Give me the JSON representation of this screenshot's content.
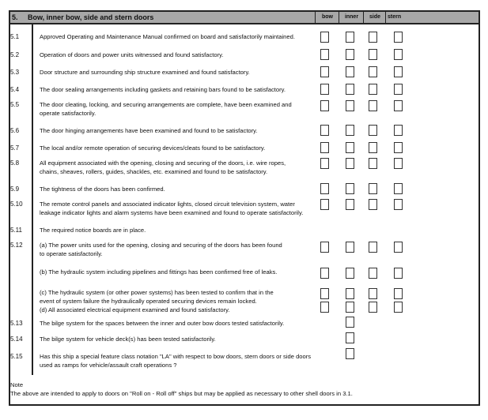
{
  "section": {
    "number": "5.",
    "title": "Bow, inner bow, side and stern doors"
  },
  "columns": [
    "bow",
    "inner",
    "side",
    "stern"
  ],
  "items": [
    {
      "num": "5.1",
      "text": "Approved Operating and Maintenance Manual confirmed on board and satisfactorily maintained.",
      "boxes": [
        true,
        true,
        true,
        true
      ]
    },
    {
      "num": "5.2",
      "text": "Operation of doors and power units witnessed and found satisfactory.",
      "boxes": [
        true,
        true,
        true,
        true
      ]
    },
    {
      "num": "5.3",
      "text": "Door structure and surrounding ship structure examined and found satisfactory.",
      "boxes": [
        true,
        true,
        true,
        true
      ]
    },
    {
      "num": "5.4",
      "text": "The door sealing arrangements including gaskets and retaining bars found to be satisfactory.",
      "boxes": [
        true,
        true,
        true,
        true
      ]
    },
    {
      "num": "5.5",
      "text": "The door cleating, locking, and securing arrangements are complete, have been examined and\noperate satisfactorily.",
      "boxes": [
        true,
        true,
        true,
        true
      ]
    },
    {
      "num": "5.6",
      "text": "The door hinging arrangements have been examined and found to be satisfactory.",
      "boxes": [
        true,
        true,
        true,
        true
      ]
    },
    {
      "num": "5.7",
      "text": "The local and/or remote operation of securing devices/cleats found to be satisfactory.",
      "boxes": [
        true,
        true,
        true,
        true
      ]
    },
    {
      "num": "5.8",
      "text": "All equipment associated with the opening, closing and securing of the doors, i.e. wire ropes,\nchains, sheaves, rollers, guides, shackles, etc. examined and found to be satisfactory.",
      "boxes": [
        true,
        true,
        true,
        true
      ]
    },
    {
      "num": "5.9",
      "text": "The tightness of the doors has been confirmed.",
      "boxes": [
        true,
        true,
        true,
        true
      ]
    },
    {
      "num": "5.10",
      "text": "The remote control panels and associated indicator lights, closed circuit television system, water\nleakage indicator lights and alarm systems have been examined and found to operate satisfactorily.",
      "boxes": [
        true,
        true,
        true,
        true
      ]
    },
    {
      "num": "5.11",
      "text": "The required notice boards are in place.",
      "boxes": [
        false,
        false,
        false,
        false
      ]
    },
    {
      "num": "5.12",
      "text": "(a) The power units used for the opening, closing and securing of the doors has been found\nto operate satisfactorily.",
      "boxes": [
        true,
        true,
        true,
        true
      ]
    },
    {
      "num": "",
      "text": "(b) The hydraulic system including pipelines and fittings has been confirmed free of leaks.",
      "boxes": [
        true,
        true,
        true,
        true
      ]
    },
    {
      "num": "",
      "text": "(c) The hydraulic system (or other power systems)  has been tested to confirm that in the\nevent of system failure the hydraulically operated securing devices remain locked.\n(d) All associated electrical equipment examined and found satisfactory.",
      "boxes": [
        true,
        true,
        true,
        true
      ]
    },
    {
      "num": "5.13",
      "text": "The bilge system for the spaces between the inner and outer bow doors tested satisfactorily.",
      "boxes": [
        false,
        true,
        false,
        false
      ]
    },
    {
      "num": "5.14",
      "text": "The bilge system for vehicle deck(s) has been tested satisfactorily.",
      "boxes": [
        false,
        true,
        false,
        false
      ]
    },
    {
      "num": "5.15",
      "text": "Has this ship a special feature class notation \"LA\" with respect to bow doors, stern doors or side doors\nused as ramps for vehicle/assault craft operations ?",
      "boxes": [
        false,
        true,
        false,
        false
      ]
    }
  ],
  "note": {
    "label": "Note",
    "text": "The above are intended to apply to doors on \"Roll on - Roll off\" ships but may be applied as necessary to other shell doors in 3.1."
  }
}
